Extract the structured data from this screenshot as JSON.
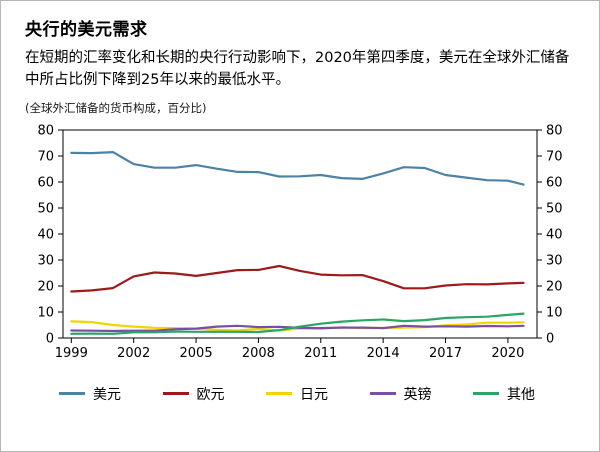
{
  "chart_data": {
    "type": "line",
    "title": "央行的美元需求",
    "subtitle": "在短期的汇率变化和长期的央行行动影响下，2020年第四季度，美元在全球外汇储备中所占比例下降到25年以来的最低水平。",
    "unit_note": "(全球外汇储备的货币构成，百分比)",
    "x": [
      1999,
      2000,
      2001,
      2002,
      2003,
      2004,
      2005,
      2006,
      2007,
      2008,
      2009,
      2010,
      2011,
      2012,
      2013,
      2014,
      2015,
      2016,
      2017,
      2018,
      2019,
      2020,
      2020.75
    ],
    "xticks": [
      1999,
      2002,
      2005,
      2008,
      2011,
      2014,
      2017,
      2020
    ],
    "ylim": [
      0,
      80
    ],
    "yticks": [
      0,
      10,
      20,
      30,
      40,
      50,
      60,
      70,
      80
    ],
    "grid": false,
    "legend_position": "bottom",
    "series": [
      {
        "name": "美元",
        "color": "#4d82a8",
        "values": [
          71.2,
          71.1,
          71.5,
          66.9,
          65.5,
          65.5,
          66.5,
          65.1,
          63.9,
          63.8,
          62.1,
          62.2,
          62.7,
          61.5,
          61.2,
          63.3,
          65.7,
          65.4,
          62.7,
          61.7,
          60.7,
          60.5,
          59.0
        ]
      },
      {
        "name": "欧元",
        "color": "#9e1a1a",
        "values": [
          17.9,
          18.3,
          19.2,
          23.7,
          25.2,
          24.8,
          23.9,
          25.0,
          26.1,
          26.2,
          27.7,
          25.8,
          24.4,
          24.1,
          24.2,
          21.9,
          19.1,
          19.1,
          20.2,
          20.7,
          20.6,
          21.0,
          21.2
        ]
      },
      {
        "name": "日元",
        "color": "#f2d500",
        "values": [
          6.4,
          6.1,
          5.0,
          4.4,
          3.9,
          3.8,
          3.6,
          3.1,
          2.9,
          3.5,
          2.9,
          3.7,
          3.6,
          4.1,
          3.8,
          3.9,
          4.0,
          4.2,
          4.9,
          5.2,
          5.9,
          5.9,
          6.0
        ]
      },
      {
        "name": "英镑",
        "color": "#7a4fa3",
        "values": [
          2.9,
          2.8,
          2.7,
          2.8,
          2.8,
          3.4,
          3.6,
          4.4,
          4.7,
          4.2,
          4.3,
          3.9,
          3.8,
          4.0,
          4.0,
          3.8,
          4.7,
          4.4,
          4.5,
          4.4,
          4.6,
          4.5,
          4.7
        ]
      },
      {
        "name": "其他",
        "color": "#2aa664",
        "values": [
          1.6,
          1.7,
          1.6,
          2.2,
          2.2,
          2.5,
          2.4,
          2.4,
          2.4,
          2.3,
          3.0,
          4.4,
          5.5,
          6.3,
          6.8,
          7.1,
          6.5,
          6.9,
          7.7,
          8.0,
          8.2,
          8.9,
          9.4
        ]
      }
    ]
  }
}
